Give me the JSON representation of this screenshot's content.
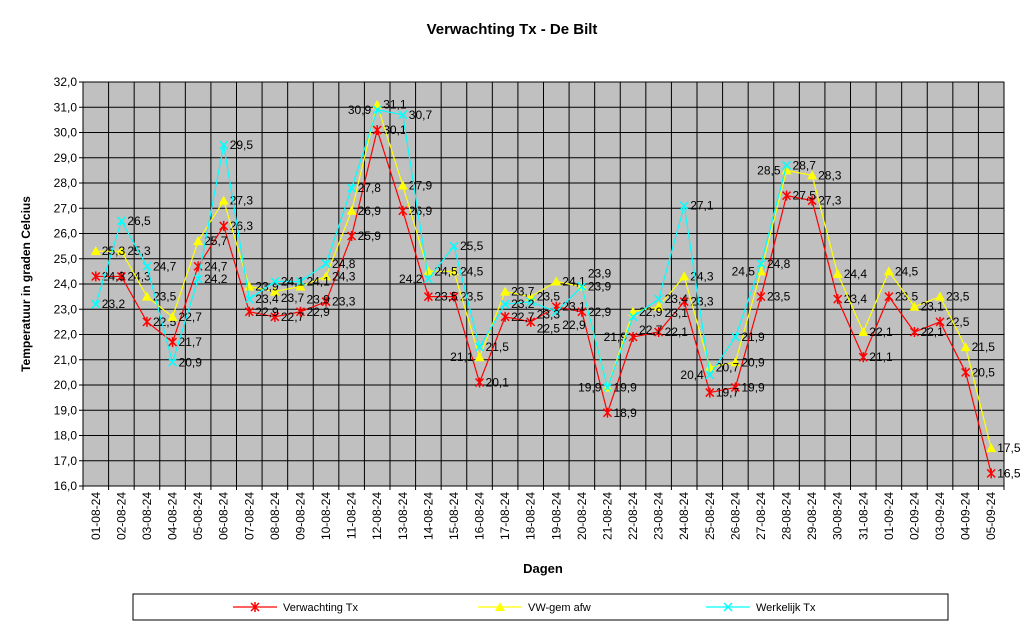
{
  "chart_data": {
    "type": "line",
    "title": "Verwachting Tx - De Bilt",
    "xlabel": "Dagen",
    "ylabel": "Temperatuur in graden Celcius",
    "ylim": [
      16,
      32
    ],
    "ytick_step": 1,
    "grid": true,
    "legend_position": "bottom",
    "plot_background": "#c0c0c0",
    "categories": [
      "01-08-24",
      "02-08-24",
      "03-08-24",
      "04-08-24",
      "05-08-24",
      "06-08-24",
      "07-08-24",
      "08-08-24",
      "09-08-24",
      "10-08-24",
      "11-08-24",
      "12-08-24",
      "13-08-24",
      "14-08-24",
      "15-08-24",
      "16-08-24",
      "17-08-24",
      "18-08-24",
      "19-08-24",
      "20-08-24",
      "21-08-24",
      "22-08-24",
      "23-08-24",
      "24-08-24",
      "25-08-24",
      "26-08-24",
      "27-08-24",
      "28-08-24",
      "29-08-24",
      "30-08-24",
      "31-08-24",
      "01-09-24",
      "02-09-24",
      "03-09-24",
      "04-09-24",
      "05-09-24"
    ],
    "series": [
      {
        "name": "Verwachting Tx",
        "color": "#ff0000",
        "marker": "asterisk",
        "values": [
          24.3,
          24.3,
          22.5,
          21.7,
          24.7,
          26.3,
          22.9,
          22.7,
          22.9,
          23.3,
          25.9,
          30.1,
          26.9,
          23.5,
          23.5,
          20.1,
          22.7,
          22.5,
          23.1,
          22.9,
          18.9,
          21.9,
          22.1,
          23.3,
          19.7,
          19.9,
          23.5,
          27.5,
          27.3,
          23.4,
          21.1,
          23.5,
          22.1,
          22.5,
          20.5,
          16.5
        ]
      },
      {
        "name": "VW-gem afw",
        "color": "#ffff00",
        "marker": "triangle",
        "values": [
          25.3,
          25.3,
          23.5,
          22.7,
          25.7,
          27.3,
          23.9,
          23.7,
          23.9,
          24.3,
          26.9,
          31.1,
          27.9,
          24.5,
          24.5,
          21.1,
          23.7,
          23.5,
          24.1,
          23.9,
          19.9,
          22.9,
          23.1,
          24.3,
          20.7,
          20.9,
          24.5,
          28.5,
          28.3,
          24.4,
          22.1,
          24.5,
          23.1,
          23.5,
          21.5,
          17.5
        ]
      },
      {
        "name": "Werkelijk Tx",
        "color": "#00ffff",
        "marker": "x",
        "values": [
          23.2,
          26.5,
          24.7,
          20.9,
          24.2,
          29.5,
          23.4,
          24.1,
          24.1,
          24.8,
          27.8,
          30.9,
          30.7,
          24.2,
          25.5,
          21.5,
          23.2,
          23.3,
          22.9,
          23.9,
          19.9,
          22.7,
          23.4,
          27.1,
          20.4,
          21.9,
          24.8,
          28.7,
          null,
          null,
          null,
          null,
          null,
          null,
          null,
          null
        ]
      }
    ]
  }
}
